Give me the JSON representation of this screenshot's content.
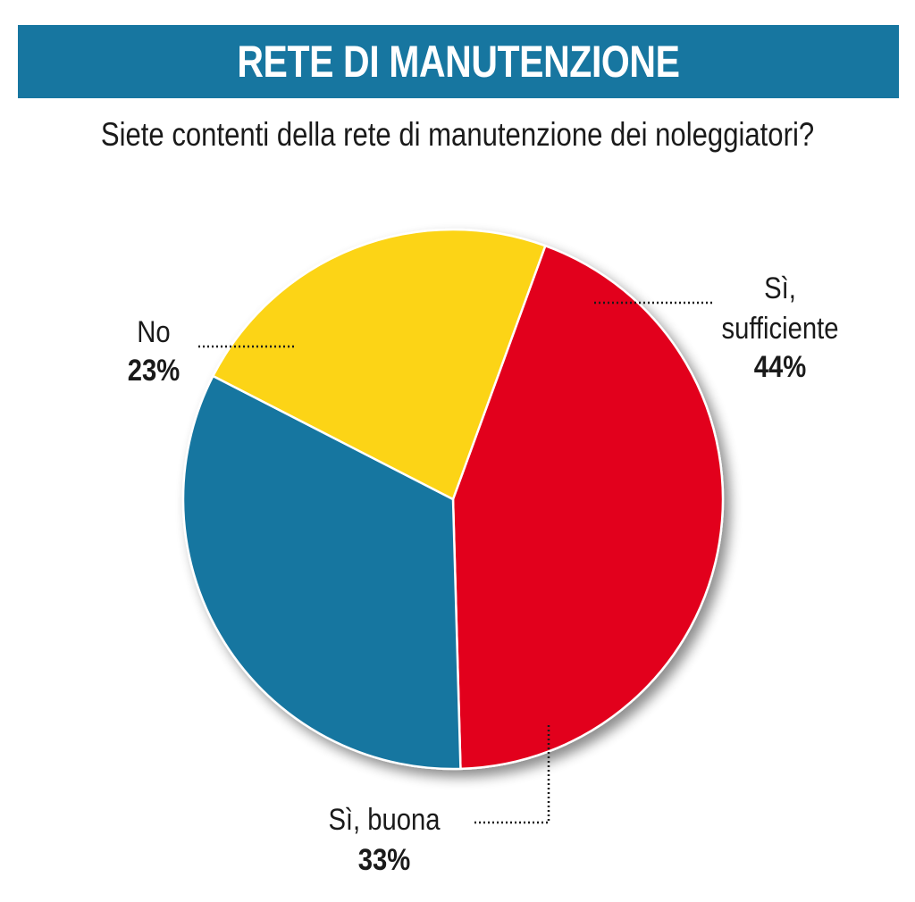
{
  "header": {
    "title": "RETE DI MANUTENZIONE",
    "bar_color": "#1776a0"
  },
  "subtitle": "Siete contenti della rete di manutenzione dei noleggiatori?",
  "chart_data": {
    "type": "pie",
    "title": "RETE DI MANUTENZIONE",
    "subtitle": "Siete contenti della rete di manutenzione dei noleggiatori?",
    "slices": [
      {
        "label": "Sì, sufficiente",
        "label_lines": [
          "Sì,",
          "sufficiente"
        ],
        "value": 44,
        "value_label": "44%",
        "color": "#e2001a"
      },
      {
        "label": "Sì, buona",
        "label_lines": [
          "Sì, buona"
        ],
        "value": 33,
        "value_label": "33%",
        "color": "#1776a0"
      },
      {
        "label": "No",
        "label_lines": [
          "No"
        ],
        "value": 23,
        "value_label": "23%",
        "color": "#fcd414"
      }
    ],
    "start_angle_deg": 20,
    "direction": "clockwise",
    "leader_lines": "dotted",
    "legend": "none"
  }
}
